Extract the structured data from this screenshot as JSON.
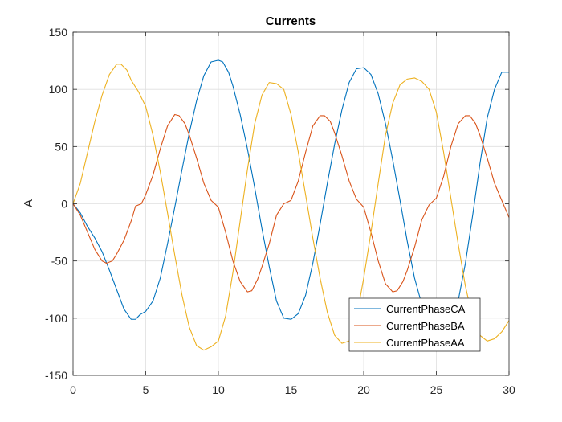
{
  "chart_data": {
    "type": "line",
    "title": "Currents",
    "xlabel": "",
    "ylabel": "A",
    "xlim": [
      0,
      30
    ],
    "ylim": [
      -150,
      150
    ],
    "xticks": [
      0,
      5,
      10,
      15,
      20,
      25,
      30
    ],
    "yticks": [
      -150,
      -100,
      -50,
      0,
      50,
      100,
      150
    ],
    "grid": true,
    "legend_position": "bottom-right",
    "series": [
      {
        "name": "CurrentPhaseCA",
        "color": "#0072BD",
        "points": [
          [
            0,
            0
          ],
          [
            0.5,
            -8
          ],
          [
            1,
            -20
          ],
          [
            1.5,
            -30
          ],
          [
            2,
            -42
          ],
          [
            2.5,
            -58
          ],
          [
            3,
            -75
          ],
          [
            3.5,
            -92
          ],
          [
            4,
            -101
          ],
          [
            4.3,
            -101
          ],
          [
            4.6,
            -97
          ],
          [
            5,
            -94
          ],
          [
            5.5,
            -85
          ],
          [
            6,
            -65
          ],
          [
            6.5,
            -35
          ],
          [
            7,
            -3
          ],
          [
            7.5,
            30
          ],
          [
            8,
            62
          ],
          [
            8.5,
            90
          ],
          [
            9,
            112
          ],
          [
            9.5,
            124
          ],
          [
            10,
            125.5
          ],
          [
            10.3,
            124
          ],
          [
            10.7,
            115
          ],
          [
            11,
            103
          ],
          [
            11.5,
            78
          ],
          [
            12,
            48
          ],
          [
            12.5,
            14
          ],
          [
            13,
            -22
          ],
          [
            13.5,
            -55
          ],
          [
            14,
            -85
          ],
          [
            14.5,
            -100
          ],
          [
            15,
            -101
          ],
          [
            15.5,
            -96
          ],
          [
            16,
            -80
          ],
          [
            16.5,
            -52
          ],
          [
            17,
            -18
          ],
          [
            17.5,
            18
          ],
          [
            18,
            52
          ],
          [
            18.5,
            82
          ],
          [
            19,
            106
          ],
          [
            19.5,
            118
          ],
          [
            20,
            119
          ],
          [
            20.5,
            113
          ],
          [
            21,
            96
          ],
          [
            21.5,
            70
          ],
          [
            22,
            38
          ],
          [
            22.5,
            3
          ],
          [
            23,
            -33
          ],
          [
            23.5,
            -65
          ],
          [
            24,
            -88
          ],
          [
            24.5,
            -102
          ],
          [
            25,
            -110
          ],
          [
            25.5,
            -113
          ],
          [
            26,
            -107
          ],
          [
            26.5,
            -85
          ],
          [
            27,
            -52
          ],
          [
            27.5,
            -10
          ],
          [
            28,
            35
          ],
          [
            28.5,
            75
          ],
          [
            29,
            100
          ],
          [
            29.5,
            115
          ],
          [
            30,
            115
          ]
        ]
      },
      {
        "name": "CurrentPhaseBA",
        "color": "#D95319",
        "points": [
          [
            0,
            0
          ],
          [
            0.5,
            -10
          ],
          [
            1,
            -25
          ],
          [
            1.5,
            -40
          ],
          [
            2,
            -50
          ],
          [
            2.3,
            -52
          ],
          [
            2.7,
            -50
          ],
          [
            3,
            -44
          ],
          [
            3.5,
            -32
          ],
          [
            4,
            -15
          ],
          [
            4.3,
            -2
          ],
          [
            4.7,
            0
          ],
          [
            5,
            8
          ],
          [
            5.5,
            25
          ],
          [
            6,
            48
          ],
          [
            6.5,
            68
          ],
          [
            7,
            78
          ],
          [
            7.3,
            77
          ],
          [
            7.7,
            70
          ],
          [
            8,
            60
          ],
          [
            8.5,
            40
          ],
          [
            9,
            18
          ],
          [
            9.5,
            3
          ],
          [
            10,
            -3
          ],
          [
            10.5,
            -25
          ],
          [
            11,
            -50
          ],
          [
            11.5,
            -68
          ],
          [
            12,
            -77
          ],
          [
            12.3,
            -76
          ],
          [
            12.7,
            -66
          ],
          [
            13,
            -55
          ],
          [
            13.5,
            -35
          ],
          [
            14,
            -10
          ],
          [
            14.5,
            0
          ],
          [
            15,
            3
          ],
          [
            15.5,
            20
          ],
          [
            16,
            45
          ],
          [
            16.5,
            68
          ],
          [
            17,
            77
          ],
          [
            17.3,
            77
          ],
          [
            17.7,
            72
          ],
          [
            18,
            62
          ],
          [
            18.5,
            42
          ],
          [
            19,
            20
          ],
          [
            19.5,
            4
          ],
          [
            20,
            -3
          ],
          [
            20.5,
            -25
          ],
          [
            21,
            -50
          ],
          [
            21.5,
            -70
          ],
          [
            22,
            -77
          ],
          [
            22.3,
            -76
          ],
          [
            22.7,
            -68
          ],
          [
            23,
            -58
          ],
          [
            23.5,
            -38
          ],
          [
            24,
            -14
          ],
          [
            24.5,
            -1
          ],
          [
            25,
            5
          ],
          [
            25.5,
            24
          ],
          [
            26,
            50
          ],
          [
            26.5,
            70
          ],
          [
            27,
            77
          ],
          [
            27.3,
            77
          ],
          [
            27.7,
            70
          ],
          [
            28,
            60
          ],
          [
            28.5,
            40
          ],
          [
            29,
            18
          ],
          [
            29.5,
            3
          ],
          [
            30,
            -12
          ]
        ]
      },
      {
        "name": "CurrentPhaseAA",
        "color": "#EDB120",
        "points": [
          [
            0,
            0
          ],
          [
            0.5,
            18
          ],
          [
            1,
            45
          ],
          [
            1.5,
            72
          ],
          [
            2,
            95
          ],
          [
            2.5,
            113
          ],
          [
            3,
            122
          ],
          [
            3.3,
            122
          ],
          [
            3.7,
            117
          ],
          [
            4,
            108
          ],
          [
            4.5,
            98
          ],
          [
            5,
            85
          ],
          [
            5.5,
            60
          ],
          [
            6,
            28
          ],
          [
            6.5,
            -8
          ],
          [
            7,
            -45
          ],
          [
            7.5,
            -80
          ],
          [
            8,
            -108
          ],
          [
            8.5,
            -124
          ],
          [
            9,
            -128
          ],
          [
            9.5,
            -125
          ],
          [
            10,
            -120
          ],
          [
            10.5,
            -98
          ],
          [
            11,
            -60
          ],
          [
            11.5,
            -15
          ],
          [
            12,
            30
          ],
          [
            12.5,
            70
          ],
          [
            13,
            95
          ],
          [
            13.5,
            106
          ],
          [
            14,
            105
          ],
          [
            14.5,
            100
          ],
          [
            15,
            78
          ],
          [
            15.5,
            45
          ],
          [
            16,
            8
          ],
          [
            16.5,
            -30
          ],
          [
            17,
            -65
          ],
          [
            17.5,
            -95
          ],
          [
            18,
            -115
          ],
          [
            18.5,
            -122
          ],
          [
            19,
            -120
          ],
          [
            19.5,
            -100
          ],
          [
            20,
            -65
          ],
          [
            20.5,
            -25
          ],
          [
            21,
            18
          ],
          [
            21.5,
            60
          ],
          [
            22,
            88
          ],
          [
            22.5,
            104
          ],
          [
            23,
            109
          ],
          [
            23.5,
            110
          ],
          [
            24,
            107
          ],
          [
            24.5,
            100
          ],
          [
            25,
            80
          ],
          [
            25.5,
            45
          ],
          [
            26,
            5
          ],
          [
            26.5,
            -35
          ],
          [
            27,
            -72
          ],
          [
            27.5,
            -100
          ],
          [
            28,
            -115
          ],
          [
            28.5,
            -120
          ],
          [
            29,
            -118
          ],
          [
            29.5,
            -112
          ],
          [
            30,
            -102
          ]
        ]
      }
    ]
  }
}
